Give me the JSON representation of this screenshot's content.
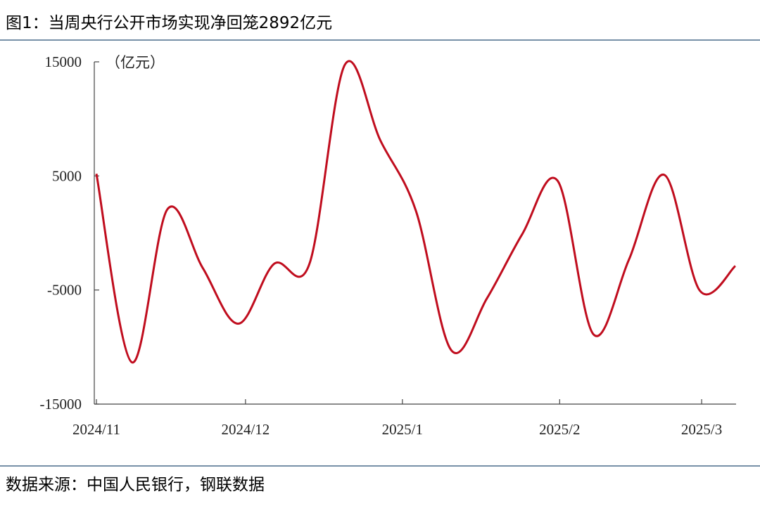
{
  "chart_data": {
    "type": "line",
    "title": "图1：当周央行公开市场实现净回笼2892亿元",
    "unit_label": "（亿元）",
    "source": "数据来源：中国人民银行，钢联数据",
    "x": [
      0,
      1,
      2,
      3,
      4,
      5,
      6,
      7,
      8,
      9,
      10,
      11,
      12,
      13,
      14,
      15,
      16,
      17,
      18
    ],
    "series": [
      {
        "color": "#c00d1e",
        "values": [
          5185,
          -11340,
          2080,
          -3090,
          -7950,
          -2720,
          -2720,
          14750,
          8110,
          1950,
          -10290,
          -5740,
          -80,
          4540,
          -8880,
          -2350,
          5090,
          -5060,
          -2892
        ]
      }
    ],
    "xlim": [
      0,
      18
    ],
    "xticks": [
      {
        "value": 0,
        "label": "2024/11"
      },
      {
        "value": 4.2,
        "label": "2024/12"
      },
      {
        "value": 8.62,
        "label": "2025/1"
      },
      {
        "value": 13.05,
        "label": "2025/2"
      },
      {
        "value": 17.05,
        "label": "2025/3"
      }
    ],
    "ylim": [
      -15000,
      15000
    ],
    "yticks": [
      -15000,
      -5000,
      5000,
      15000
    ]
  }
}
